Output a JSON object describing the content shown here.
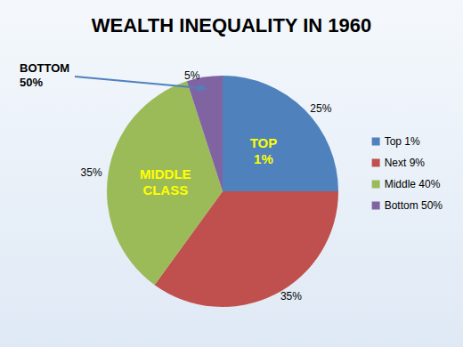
{
  "chart_data": {
    "type": "pie",
    "title": "WEALTH INEQUALITY IN 1960",
    "categories": [
      "Top 1%",
      "Next 9%",
      "Middle 40%",
      "Bottom 50%"
    ],
    "values": [
      25,
      35,
      35,
      5
    ],
    "value_labels": [
      "25%",
      "35%",
      "35%",
      "5%"
    ],
    "colors": [
      "#4f81bd",
      "#c0504d",
      "#9bbb59",
      "#8064a2"
    ],
    "data_labels": true,
    "legend": "right",
    "annotations": [
      {
        "text": "TOP\n1%",
        "category": "Top 1%",
        "color": "#ffff00"
      },
      {
        "text": "MIDDLE\nCLASS",
        "category": "Middle 40%",
        "color": "#ffff00"
      },
      {
        "text": "BOTTOM\n50%",
        "category": "Bottom 50%",
        "color": "#000000"
      }
    ]
  }
}
